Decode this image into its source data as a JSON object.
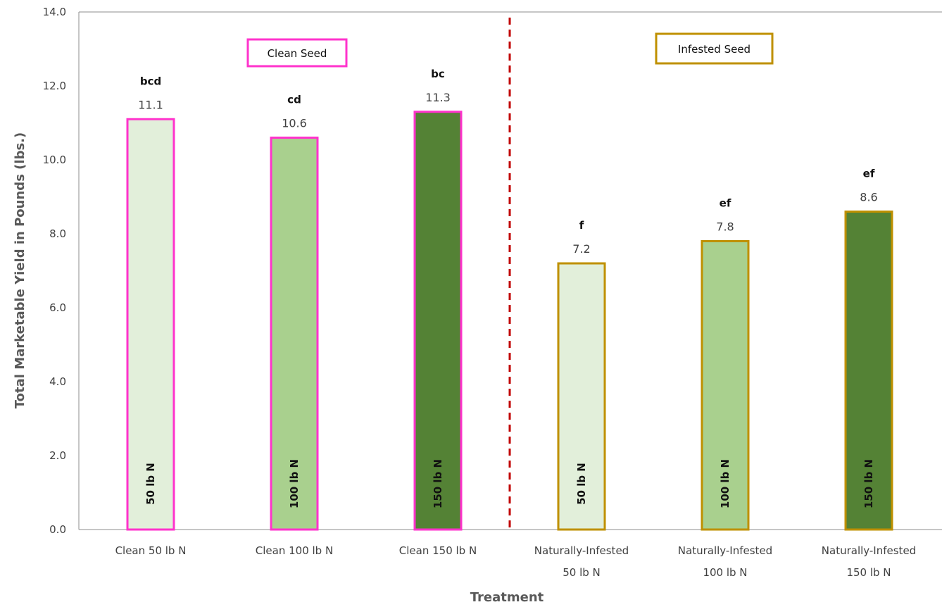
{
  "chart_data": {
    "type": "bar",
    "title": "",
    "xlabel": "Treatment",
    "ylabel": "Total Marketable Yield in Pounds (lbs.)",
    "ylim": [
      0,
      14
    ],
    "yticks": [
      "0.0",
      "2.0",
      "4.0",
      "6.0",
      "8.0",
      "10.0",
      "12.0",
      "14.0"
    ],
    "grid": false,
    "legend": "none",
    "categories": [
      [
        "Clean 50 lb N"
      ],
      [
        "Clean 100 lb N"
      ],
      [
        "Clean 150 lb N"
      ],
      [
        "Naturally-Infested",
        "50 lb N"
      ],
      [
        "Naturally-Infested",
        "100 lb N"
      ],
      [
        "Naturally-Infested",
        "150 lb N"
      ]
    ],
    "values": [
      11.1,
      10.6,
      11.3,
      7.2,
      7.8,
      8.6
    ],
    "value_labels": [
      "11.1",
      "10.6",
      "11.3",
      "7.2",
      "7.8",
      "8.6"
    ],
    "significance_letters": [
      "bcd",
      "cd",
      "bc",
      "f",
      "ef",
      "ef"
    ],
    "bar_inner_labels": [
      "50 lb N",
      "100 lb N",
      "150 lb N",
      "50 lb N",
      "100 lb N",
      "150 lb N"
    ],
    "bar_fill_colors": [
      "#e2efda",
      "#a9d08e",
      "#548235",
      "#e2efda",
      "#a9d08e",
      "#548235"
    ],
    "bar_border_colors": [
      "#ff33cc",
      "#ff33cc",
      "#ff33cc",
      "#bf9000",
      "#bf9000",
      "#bf9000"
    ],
    "inner_label_colors": [
      "#111111",
      "#111111",
      "#111111",
      "#111111",
      "#111111",
      "#111111"
    ],
    "groups": [
      {
        "label": "Clean Seed",
        "border_color": "#ff33cc"
      },
      {
        "label": "Infested Seed",
        "border_color": "#bf9000"
      }
    ],
    "divider_color": "#c00000"
  }
}
